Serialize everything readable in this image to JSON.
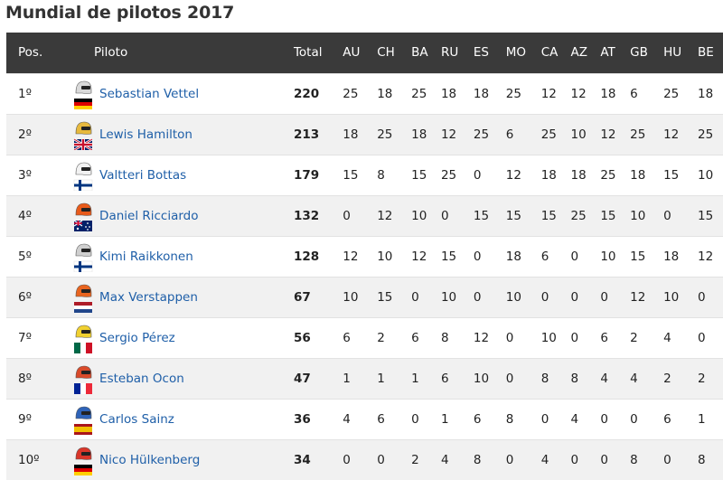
{
  "title": "Mundial de pilotos 2017",
  "columns": [
    "Pos.",
    "Piloto",
    "Total",
    "AU",
    "CH",
    "BA",
    "RU",
    "ES",
    "MO",
    "CA",
    "AZ",
    "AT",
    "GB",
    "HU",
    "BE"
  ],
  "rows": [
    {
      "pos": "1º",
      "name": "Sebastian Vettel",
      "helmet_color": "#d9d9d9",
      "flag": [
        "#000000",
        "#dd0000",
        "#ffce00"
      ],
      "flag_type": "h3",
      "total": "220",
      "points": [
        "25",
        "18",
        "25",
        "18",
        "18",
        "25",
        "12",
        "12",
        "18",
        "6",
        "25",
        "18"
      ]
    },
    {
      "pos": "2º",
      "name": "Lewis Hamilton",
      "helmet_color": "#e7b93d",
      "flag": [
        "#012169",
        "#ffffff",
        "#c8102e"
      ],
      "flag_type": "uk",
      "total": "213",
      "points": [
        "18",
        "25",
        "18",
        "12",
        "25",
        "6",
        "25",
        "10",
        "12",
        "25",
        "12",
        "25"
      ]
    },
    {
      "pos": "3º",
      "name": "Valtteri Bottas",
      "helmet_color": "#f2f2f2",
      "flag": [
        "#ffffff",
        "#003580"
      ],
      "flag_type": "nordic",
      "total": "179",
      "points": [
        "15",
        "8",
        "15",
        "25",
        "0",
        "12",
        "18",
        "18",
        "25",
        "18",
        "15",
        "10"
      ]
    },
    {
      "pos": "4º",
      "name": "Daniel Ricciardo",
      "helmet_color": "#e85a1a",
      "flag": [
        "#012169",
        "#ffffff",
        "#e4002b"
      ],
      "flag_type": "au",
      "total": "132",
      "points": [
        "0",
        "12",
        "10",
        "0",
        "15",
        "15",
        "15",
        "25",
        "15",
        "10",
        "0",
        "15"
      ]
    },
    {
      "pos": "5º",
      "name": "Kimi Raikkonen",
      "helmet_color": "#cfcfcf",
      "flag": [
        "#ffffff",
        "#003580"
      ],
      "flag_type": "nordic",
      "total": "128",
      "points": [
        "12",
        "10",
        "12",
        "15",
        "0",
        "18",
        "6",
        "0",
        "10",
        "15",
        "18",
        "12"
      ]
    },
    {
      "pos": "6º",
      "name": "Max Verstappen",
      "helmet_color": "#e8641f",
      "flag": [
        "#ae1c28",
        "#ffffff",
        "#21468b"
      ],
      "flag_type": "h3",
      "total": "67",
      "points": [
        "10",
        "15",
        "0",
        "10",
        "0",
        "10",
        "0",
        "0",
        "0",
        "12",
        "10",
        "0"
      ]
    },
    {
      "pos": "7º",
      "name": "Sergio Pérez",
      "helmet_color": "#f0d030",
      "flag": [
        "#006847",
        "#ffffff",
        "#ce1126"
      ],
      "flag_type": "v3",
      "total": "56",
      "points": [
        "6",
        "2",
        "6",
        "8",
        "12",
        "0",
        "10",
        "0",
        "6",
        "2",
        "4",
        "0"
      ]
    },
    {
      "pos": "8º",
      "name": "Esteban Ocon",
      "helmet_color": "#d94a2a",
      "flag": [
        "#002395",
        "#ffffff",
        "#ed2939"
      ],
      "flag_type": "v3",
      "total": "47",
      "points": [
        "1",
        "1",
        "1",
        "6",
        "10",
        "0",
        "8",
        "8",
        "4",
        "4",
        "2",
        "2"
      ]
    },
    {
      "pos": "9º",
      "name": "Carlos Sainz",
      "helmet_color": "#2e63b8",
      "flag": [
        "#aa151b",
        "#f1bf00",
        "#aa151b"
      ],
      "flag_type": "es",
      "total": "36",
      "points": [
        "4",
        "6",
        "0",
        "1",
        "6",
        "8",
        "0",
        "4",
        "0",
        "0",
        "6",
        "1"
      ]
    },
    {
      "pos": "10º",
      "name": "Nico Hülkenberg",
      "helmet_color": "#d9362a",
      "flag": [
        "#000000",
        "#dd0000",
        "#ffce00"
      ],
      "flag_type": "h3",
      "total": "34",
      "points": [
        "0",
        "0",
        "2",
        "4",
        "8",
        "0",
        "4",
        "0",
        "0",
        "8",
        "0",
        "8"
      ]
    }
  ]
}
